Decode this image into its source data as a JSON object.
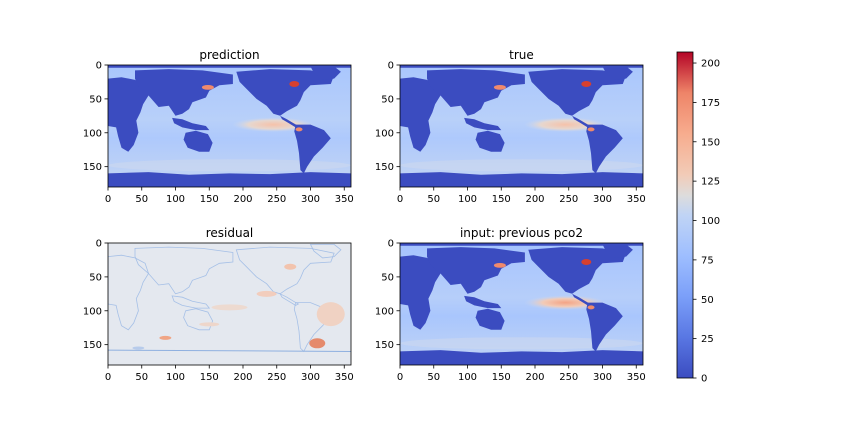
{
  "chart_data": [
    {
      "type": "heatmap",
      "title": "prediction",
      "xlim": [
        0,
        360
      ],
      "ylim": [
        180,
        0
      ],
      "xticks": [
        "0",
        "50",
        "100",
        "150",
        "200",
        "250",
        "300",
        "350"
      ],
      "yticks": [
        "0",
        "50",
        "100",
        "150"
      ],
      "field": "pco2",
      "description_values": {
        "land": 0,
        "ocean_typical": 75,
        "equatorial_pacific_peak": 130,
        "north_atlantic_hotspot": 170,
        "southern_ocean": 85
      }
    },
    {
      "type": "heatmap",
      "title": "true",
      "xlim": [
        0,
        360
      ],
      "ylim": [
        180,
        0
      ],
      "xticks": [
        "0",
        "50",
        "100",
        "150",
        "200",
        "250",
        "300",
        "350"
      ],
      "yticks": [
        "0",
        "50",
        "100",
        "150"
      ],
      "field": "pco2",
      "description_values": {
        "land": 0,
        "ocean_typical": 75,
        "equatorial_pacific_peak": 130,
        "north_atlantic_hotspot": 170,
        "southern_ocean": 85
      }
    },
    {
      "type": "heatmap",
      "title": "residual",
      "xlim": [
        0,
        360
      ],
      "ylim": [
        180,
        0
      ],
      "xticks": [
        "0",
        "50",
        "100",
        "150",
        "200",
        "250",
        "300",
        "350"
      ],
      "yticks": [
        "0",
        "50",
        "100",
        "150"
      ],
      "field": "residual",
      "description_values": {
        "background": 100,
        "min": 75,
        "max": 150
      }
    },
    {
      "type": "heatmap",
      "title": "input: previous pco2",
      "xlim": [
        0,
        360
      ],
      "ylim": [
        180,
        0
      ],
      "xticks": [
        "0",
        "50",
        "100",
        "150",
        "200",
        "250",
        "300",
        "350"
      ],
      "yticks": [
        "0",
        "50",
        "100",
        "150"
      ],
      "field": "pco2",
      "description_values": {
        "land": 0,
        "ocean_typical": 75,
        "equatorial_pacific_peak": 145,
        "north_atlantic_hotspot": 180,
        "southern_ocean": 85
      }
    }
  ],
  "colorbar": {
    "colormap": "coolwarm",
    "vmin": 0,
    "vmax": 207,
    "ticks": [
      "0",
      "25",
      "50",
      "75",
      "100",
      "125",
      "150",
      "175",
      "200"
    ]
  }
}
